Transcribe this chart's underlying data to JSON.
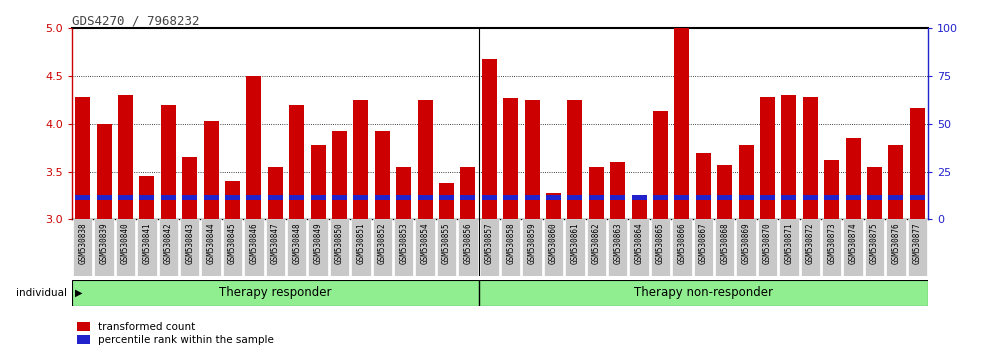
{
  "title": "GDS4270 / 7968232",
  "samples": [
    "GSM530838",
    "GSM530839",
    "GSM530840",
    "GSM530841",
    "GSM530842",
    "GSM530843",
    "GSM530844",
    "GSM530845",
    "GSM530846",
    "GSM530847",
    "GSM530848",
    "GSM530849",
    "GSM530850",
    "GSM530851",
    "GSM530852",
    "GSM530853",
    "GSM530854",
    "GSM530855",
    "GSM530856",
    "GSM530857",
    "GSM530858",
    "GSM530859",
    "GSM530860",
    "GSM530861",
    "GSM530862",
    "GSM530863",
    "GSM530864",
    "GSM530865",
    "GSM530866",
    "GSM530867",
    "GSM530868",
    "GSM530869",
    "GSM530870",
    "GSM530871",
    "GSM530872",
    "GSM530873",
    "GSM530874",
    "GSM530875",
    "GSM530876",
    "GSM530877"
  ],
  "transformed_count": [
    4.28,
    4.0,
    4.3,
    3.45,
    4.2,
    3.65,
    4.03,
    3.4,
    4.5,
    3.55,
    4.2,
    3.78,
    3.93,
    4.25,
    3.93,
    3.55,
    4.25,
    3.38,
    3.55,
    4.68,
    4.27,
    4.25,
    3.28,
    4.25,
    3.55,
    3.6,
    3.22,
    4.13,
    5.0,
    3.7,
    3.57,
    3.78,
    4.28,
    4.3,
    4.28,
    3.62,
    3.85,
    3.55,
    3.78,
    4.17
  ],
  "percentile_rank_vals": [
    18,
    14,
    16,
    8,
    16,
    12,
    16,
    10,
    16,
    12,
    16,
    12,
    14,
    16,
    14,
    14,
    16,
    10,
    12,
    20,
    18,
    16,
    10,
    10,
    16,
    14,
    6,
    16,
    20,
    14,
    12,
    14,
    18,
    16,
    16,
    14,
    14,
    14,
    14,
    16
  ],
  "group_boundary": 19,
  "group1_label": "Therapy responder",
  "group2_label": "Therapy non-responder",
  "ylim_left": [
    3.0,
    5.0
  ],
  "ylim_right": [
    0,
    100
  ],
  "bar_color_red": "#cc0000",
  "bar_color_blue": "#2222cc",
  "group_bg_color": "#90ee90",
  "tick_bg_color": "#c8c8c8",
  "title_color": "#444444",
  "left_axis_color": "#cc0000",
  "right_axis_color": "#2222cc",
  "grid_color": "#000000"
}
